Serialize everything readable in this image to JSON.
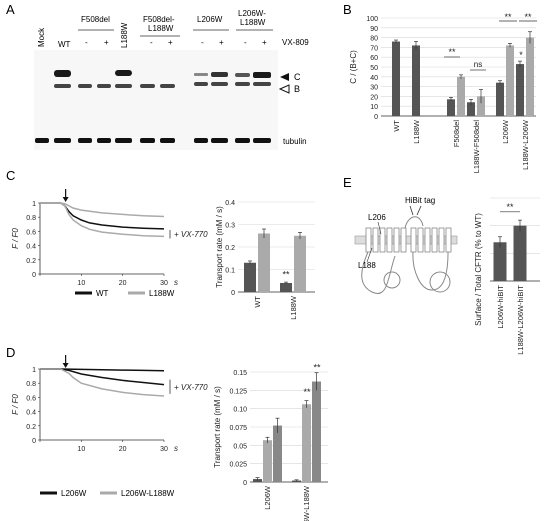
{
  "panel_labels": {
    "a": "A",
    "b": "B",
    "c": "C",
    "d": "D",
    "e": "E"
  },
  "blot": {
    "lanes": [
      "Mock",
      "WT",
      "F508del",
      "L188W",
      "F508del-\nL188W",
      "L206W",
      "L206W-\nL188W"
    ],
    "vx_label": "VX-809",
    "minus": "-",
    "plus": "+",
    "band_c": "C",
    "band_b": "B",
    "tubulin": "tubulin"
  },
  "chart_data": [
    {
      "id": "B",
      "type": "bar",
      "ylabel": "C / (B+C)",
      "ylim": [
        0,
        100
      ],
      "yticks": [
        0,
        10,
        20,
        30,
        40,
        50,
        60,
        70,
        80,
        90,
        100
      ],
      "categories": [
        "WT",
        "L188W",
        "F508del",
        "L188W-F508del",
        "L206W",
        "L188W-L206W"
      ],
      "series": [
        {
          "values": [
            76,
            72,
            17,
            14,
            34,
            53
          ]
        },
        {
          "values": [
            null,
            null,
            40,
            20,
            72,
            80
          ]
        }
      ],
      "errors": [
        [
          1.5,
          4,
          2,
          3,
          2,
          3
        ],
        [
          null,
          null,
          2,
          7,
          2,
          6
        ]
      ],
      "annotations": [
        "**",
        "ns",
        "**",
        "**",
        "*"
      ]
    },
    {
      "id": "C-trace",
      "type": "line",
      "ylabel": "F / F0",
      "xlabel": "s",
      "xlim": [
        0,
        30
      ],
      "ylim": [
        0,
        1
      ],
      "xticks": [
        0,
        10,
        20,
        30
      ],
      "yticks": [
        0,
        0.2,
        0.4,
        0.6,
        0.8,
        1
      ],
      "annotation": "+ VX-770",
      "series": [
        {
          "name": "WT",
          "x": [
            0,
            5,
            6,
            7,
            8,
            10,
            12,
            15,
            20,
            25,
            30
          ],
          "y": [
            1,
            1,
            0.96,
            0.88,
            0.82,
            0.76,
            0.72,
            0.69,
            0.66,
            0.645,
            0.635
          ]
        },
        {
          "name": "L188W",
          "x": [
            0,
            5,
            6,
            7,
            8,
            10,
            12,
            15,
            20,
            25,
            30
          ],
          "y": [
            1,
            1,
            0.96,
            0.84,
            0.76,
            0.68,
            0.63,
            0.59,
            0.56,
            0.54,
            0.53
          ]
        },
        {
          "name": "L188W",
          "x": [
            0,
            5,
            6,
            7,
            8,
            10,
            15,
            20,
            25,
            30
          ],
          "y": [
            1,
            1,
            0.99,
            0.96,
            0.93,
            0.9,
            0.86,
            0.84,
            0.82,
            0.81
          ]
        }
      ]
    },
    {
      "id": "C-bar",
      "type": "bar",
      "ylabel": "Transport rate (mM / s)",
      "ylim": [
        0,
        0.4
      ],
      "yticks": [
        0,
        0.1,
        0.2,
        0.3,
        0.4
      ],
      "categories": [
        "WT",
        "L188W"
      ],
      "series": [
        {
          "values": [
            0.13,
            0.04
          ]
        },
        {
          "values": [
            0.26,
            0.25
          ]
        }
      ],
      "errors": [
        [
          0.008,
          0.004
        ],
        [
          0.02,
          0.015
        ]
      ],
      "annotations": [
        "**"
      ]
    },
    {
      "id": "D-trace",
      "type": "line",
      "ylabel": "F / F0",
      "xlabel": "s",
      "xlim": [
        0,
        30
      ],
      "ylim": [
        0,
        1
      ],
      "xticks": [
        0,
        10,
        20,
        30
      ],
      "yticks": [
        0,
        0.2,
        0.4,
        0.6,
        0.8,
        1
      ],
      "annotation": "+ VX-770",
      "series": [
        {
          "name": "L206W",
          "x": [
            0,
            5,
            10,
            15,
            20,
            25,
            30
          ],
          "y": [
            1,
            1,
            0.995,
            0.99,
            0.985,
            0.98,
            0.975
          ]
        },
        {
          "name": "L206W",
          "x": [
            0,
            5,
            7,
            10,
            15,
            20,
            25,
            30
          ],
          "y": [
            1,
            1,
            0.98,
            0.93,
            0.88,
            0.84,
            0.81,
            0.78
          ]
        },
        {
          "name": "L206W-L188W",
          "x": [
            0,
            5,
            7,
            8,
            10,
            15,
            20,
            25,
            30
          ],
          "y": [
            1,
            1,
            0.94,
            0.88,
            0.8,
            0.72,
            0.67,
            0.64,
            0.62
          ]
        }
      ]
    },
    {
      "id": "D-bar",
      "type": "bar",
      "ylabel": "Transport rate (mM / s)",
      "ylim": [
        0,
        0.15
      ],
      "yticks": [
        0,
        0.025,
        0.05,
        0.075,
        0.1,
        0.125,
        0.15
      ],
      "ytick_labels": [
        "0",
        "0.025",
        "0.05",
        "0.075",
        "0.10",
        "0.125",
        "0.15"
      ],
      "categories": [
        "L206W",
        "L206W-L188W"
      ],
      "series": [
        {
          "values": [
            0.004,
            0.002
          ]
        },
        {
          "values": [
            0.057,
            0.106
          ]
        },
        {
          "values": [
            0.077,
            0.137
          ]
        }
      ],
      "errors": [
        [
          0.002,
          0.001
        ],
        [
          0.004,
          0.005
        ],
        [
          0.01,
          0.012
        ]
      ],
      "annotations": [
        "**",
        "**"
      ]
    },
    {
      "id": "E-bar",
      "type": "bar",
      "ylabel": "Surface / Total CFTR (% to WT)",
      "categories": [
        "L206W-hiBIT",
        "L188W-L206W-hiBIT"
      ],
      "series": [
        {
          "values": [
            14,
            20
          ]
        }
      ],
      "errors": [
        [
          2,
          2
        ]
      ],
      "annotations": [
        "**"
      ]
    }
  ],
  "schematic": {
    "hibit_label": "HiBit tag",
    "l206_label": "L206",
    "l188_label": "L188"
  },
  "legend_c": [
    "WT",
    "L188W"
  ],
  "legend_d": [
    "L206W",
    "L206W-L188W"
  ],
  "colors": {
    "dark": "#555555",
    "light": "#aaaaaa",
    "mid": "#888888",
    "black": "#111111"
  }
}
